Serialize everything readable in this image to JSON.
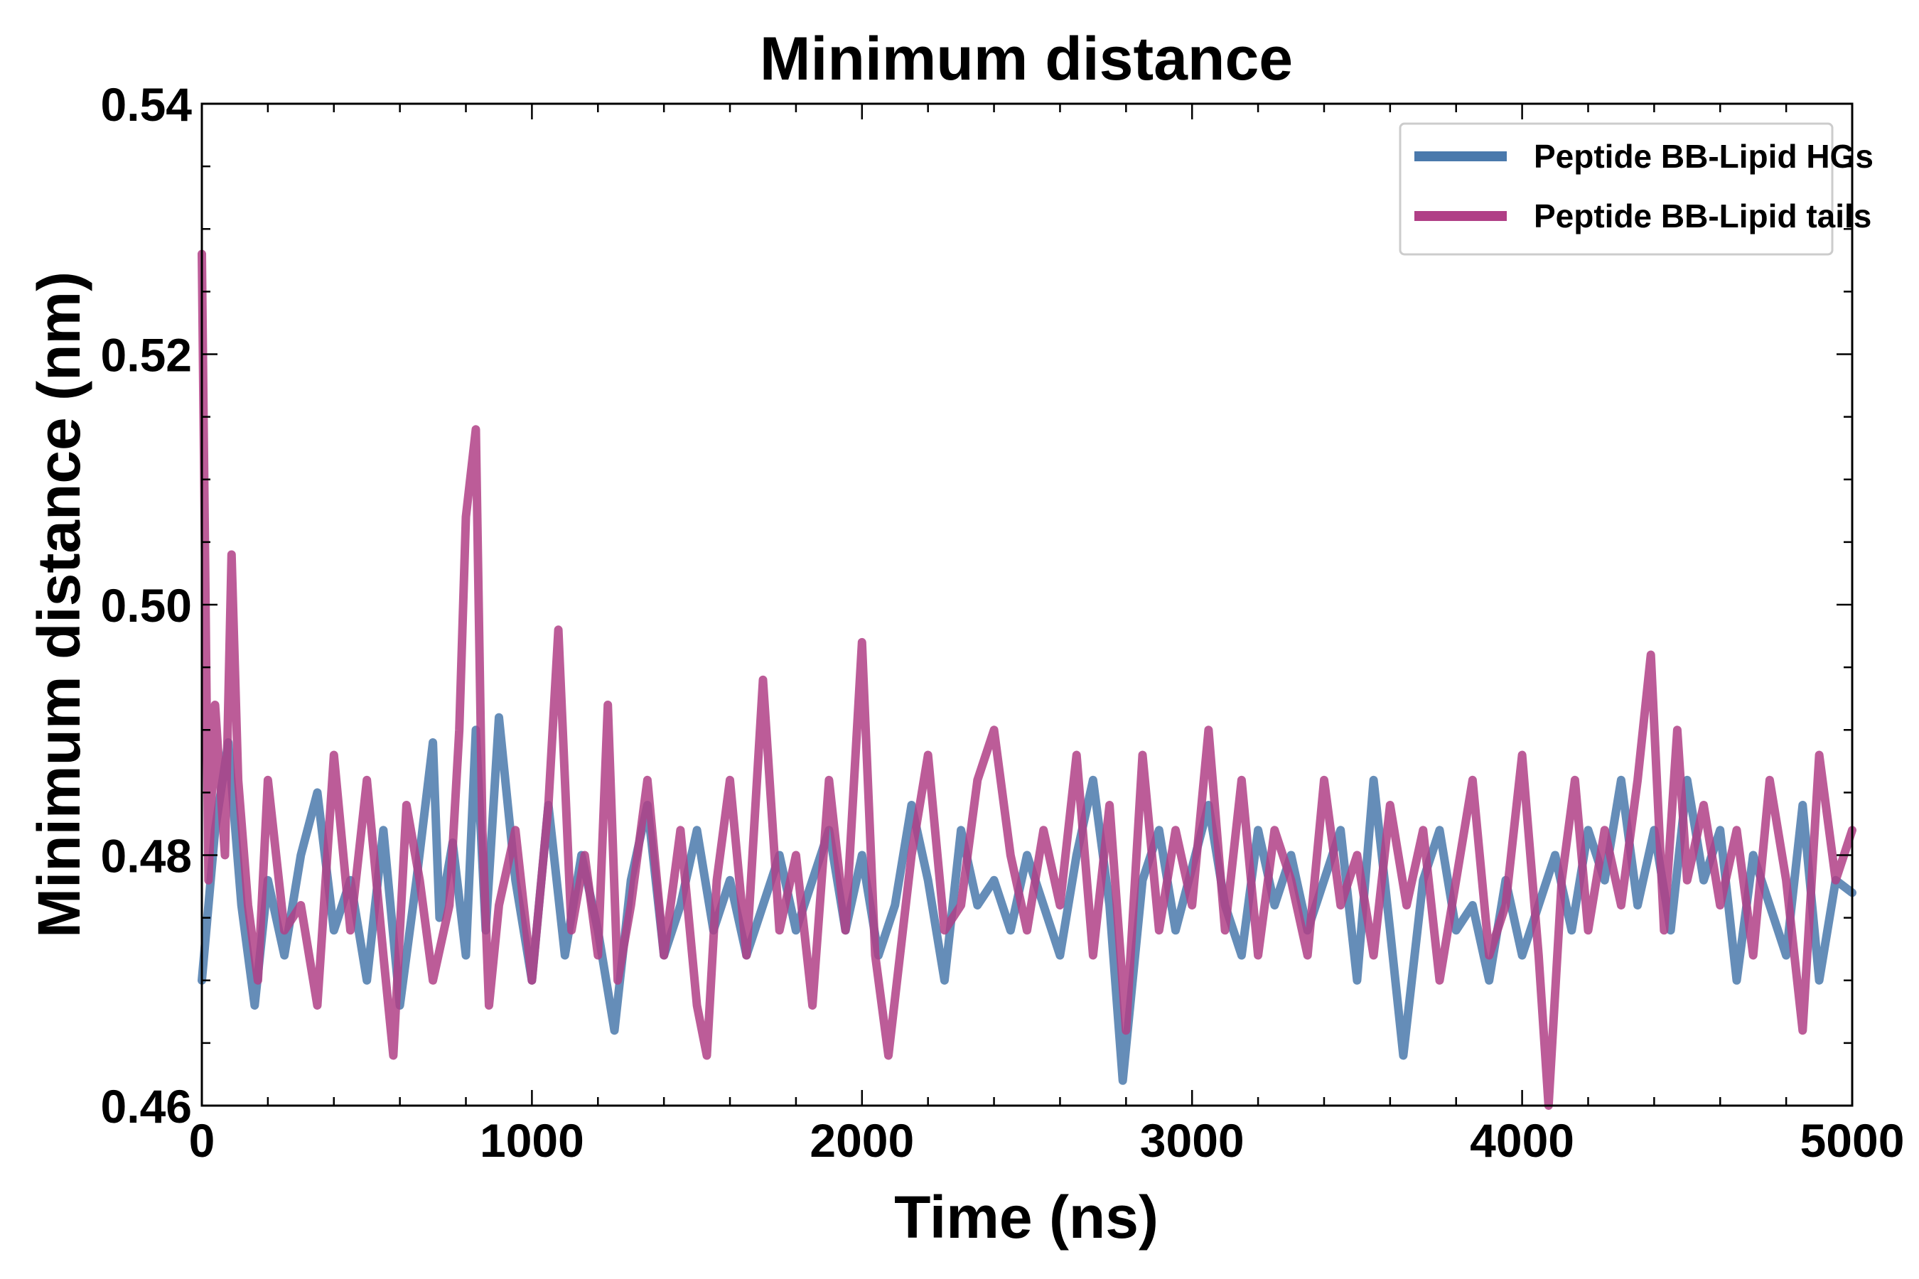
{
  "chart_data": {
    "type": "line",
    "title": "Minimum distance",
    "xlabel": "Time (ns)",
    "ylabel": "Minimum distance (nm)",
    "xlim": [
      0,
      5000
    ],
    "ylim": [
      0.46,
      0.54
    ],
    "x_ticks": [
      0,
      1000,
      2000,
      3000,
      4000,
      5000
    ],
    "x_tick_labels": [
      "0",
      "1000",
      "2000",
      "3000",
      "4000",
      "5000"
    ],
    "y_ticks": [
      0.46,
      0.48,
      0.5,
      0.52,
      0.54
    ],
    "y_tick_labels": [
      "0.46",
      "0.48",
      "0.50",
      "0.52",
      "0.54"
    ],
    "grid": false,
    "legend_position": "top-right",
    "series": [
      {
        "name": "Peptide BB-Lipid HGs",
        "color": "#4a79ac",
        "x": [
          0,
          40,
          80,
          120,
          160,
          200,
          250,
          300,
          350,
          400,
          450,
          500,
          550,
          600,
          650,
          700,
          720,
          760,
          800,
          830,
          860,
          900,
          950,
          1000,
          1050,
          1100,
          1150,
          1200,
          1250,
          1300,
          1350,
          1400,
          1450,
          1500,
          1550,
          1600,
          1650,
          1700,
          1750,
          1800,
          1850,
          1900,
          1950,
          2000,
          2050,
          2100,
          2150,
          2200,
          2250,
          2300,
          2350,
          2400,
          2450,
          2500,
          2550,
          2600,
          2650,
          2700,
          2750,
          2790,
          2850,
          2900,
          2950,
          3000,
          3050,
          3100,
          3150,
          3200,
          3250,
          3300,
          3350,
          3400,
          3450,
          3500,
          3550,
          3600,
          3640,
          3700,
          3750,
          3800,
          3850,
          3900,
          3950,
          4000,
          4050,
          4100,
          4150,
          4200,
          4250,
          4300,
          4350,
          4400,
          4450,
          4500,
          4550,
          4600,
          4650,
          4700,
          4750,
          4800,
          4850,
          4900,
          4950,
          5000
        ],
        "y": [
          0.47,
          0.482,
          0.489,
          0.476,
          0.468,
          0.478,
          0.472,
          0.48,
          0.485,
          0.474,
          0.478,
          0.47,
          0.482,
          0.468,
          0.478,
          0.489,
          0.475,
          0.481,
          0.472,
          0.49,
          0.474,
          0.491,
          0.478,
          0.47,
          0.484,
          0.472,
          0.48,
          0.474,
          0.466,
          0.478,
          0.484,
          0.472,
          0.476,
          0.482,
          0.474,
          0.478,
          0.472,
          0.476,
          0.48,
          0.474,
          0.478,
          0.482,
          0.474,
          0.48,
          0.472,
          0.476,
          0.484,
          0.478,
          0.47,
          0.482,
          0.476,
          0.478,
          0.474,
          0.48,
          0.476,
          0.472,
          0.48,
          0.486,
          0.476,
          0.462,
          0.478,
          0.482,
          0.474,
          0.479,
          0.484,
          0.476,
          0.472,
          0.482,
          0.476,
          0.48,
          0.474,
          0.478,
          0.482,
          0.47,
          0.486,
          0.474,
          0.464,
          0.478,
          0.482,
          0.474,
          0.476,
          0.47,
          0.478,
          0.472,
          0.476,
          0.48,
          0.474,
          0.482,
          0.478,
          0.486,
          0.476,
          0.482,
          0.474,
          0.486,
          0.478,
          0.482,
          0.47,
          0.48,
          0.476,
          0.472,
          0.484,
          0.47,
          0.478,
          0.477
        ]
      },
      {
        "name": "Peptide BB-Lipid tails",
        "color": "#b03f86",
        "x": [
          0,
          20,
          40,
          70,
          90,
          110,
          140,
          170,
          200,
          250,
          300,
          350,
          400,
          450,
          500,
          550,
          580,
          620,
          660,
          700,
          750,
          780,
          800,
          830,
          850,
          870,
          900,
          950,
          1000,
          1050,
          1080,
          1120,
          1160,
          1200,
          1230,
          1260,
          1300,
          1350,
          1400,
          1450,
          1500,
          1530,
          1560,
          1600,
          1650,
          1700,
          1750,
          1800,
          1850,
          1900,
          1950,
          2000,
          2040,
          2080,
          2150,
          2200,
          2250,
          2300,
          2350,
          2400,
          2450,
          2500,
          2550,
          2600,
          2650,
          2700,
          2750,
          2800,
          2850,
          2900,
          2950,
          3000,
          3050,
          3100,
          3150,
          3200,
          3250,
          3300,
          3350,
          3400,
          3450,
          3500,
          3550,
          3600,
          3650,
          3700,
          3750,
          3800,
          3850,
          3900,
          3950,
          4000,
          4050,
          4080,
          4120,
          4160,
          4200,
          4250,
          4300,
          4350,
          4390,
          4430,
          4470,
          4500,
          4550,
          4600,
          4650,
          4700,
          4750,
          4800,
          4850,
          4900,
          4950,
          5000
        ],
        "y": [
          0.528,
          0.478,
          0.492,
          0.48,
          0.504,
          0.486,
          0.476,
          0.47,
          0.486,
          0.474,
          0.476,
          0.468,
          0.488,
          0.474,
          0.486,
          0.472,
          0.464,
          0.484,
          0.478,
          0.47,
          0.476,
          0.49,
          0.507,
          0.514,
          0.482,
          0.468,
          0.476,
          0.482,
          0.47,
          0.484,
          0.498,
          0.474,
          0.48,
          0.472,
          0.492,
          0.47,
          0.476,
          0.486,
          0.472,
          0.482,
          0.468,
          0.464,
          0.478,
          0.486,
          0.472,
          0.494,
          0.474,
          0.48,
          0.468,
          0.486,
          0.474,
          0.497,
          0.472,
          0.464,
          0.48,
          0.488,
          0.474,
          0.476,
          0.486,
          0.49,
          0.48,
          0.474,
          0.482,
          0.476,
          0.488,
          0.472,
          0.484,
          0.466,
          0.488,
          0.474,
          0.482,
          0.476,
          0.49,
          0.474,
          0.486,
          0.472,
          0.482,
          0.478,
          0.472,
          0.486,
          0.476,
          0.48,
          0.472,
          0.484,
          0.476,
          0.482,
          0.47,
          0.478,
          0.486,
          0.472,
          0.476,
          0.488,
          0.472,
          0.46,
          0.478,
          0.486,
          0.474,
          0.482,
          0.476,
          0.486,
          0.496,
          0.474,
          0.49,
          0.478,
          0.484,
          0.476,
          0.482,
          0.472,
          0.486,
          0.478,
          0.466,
          0.488,
          0.478,
          0.482
        ]
      }
    ]
  }
}
